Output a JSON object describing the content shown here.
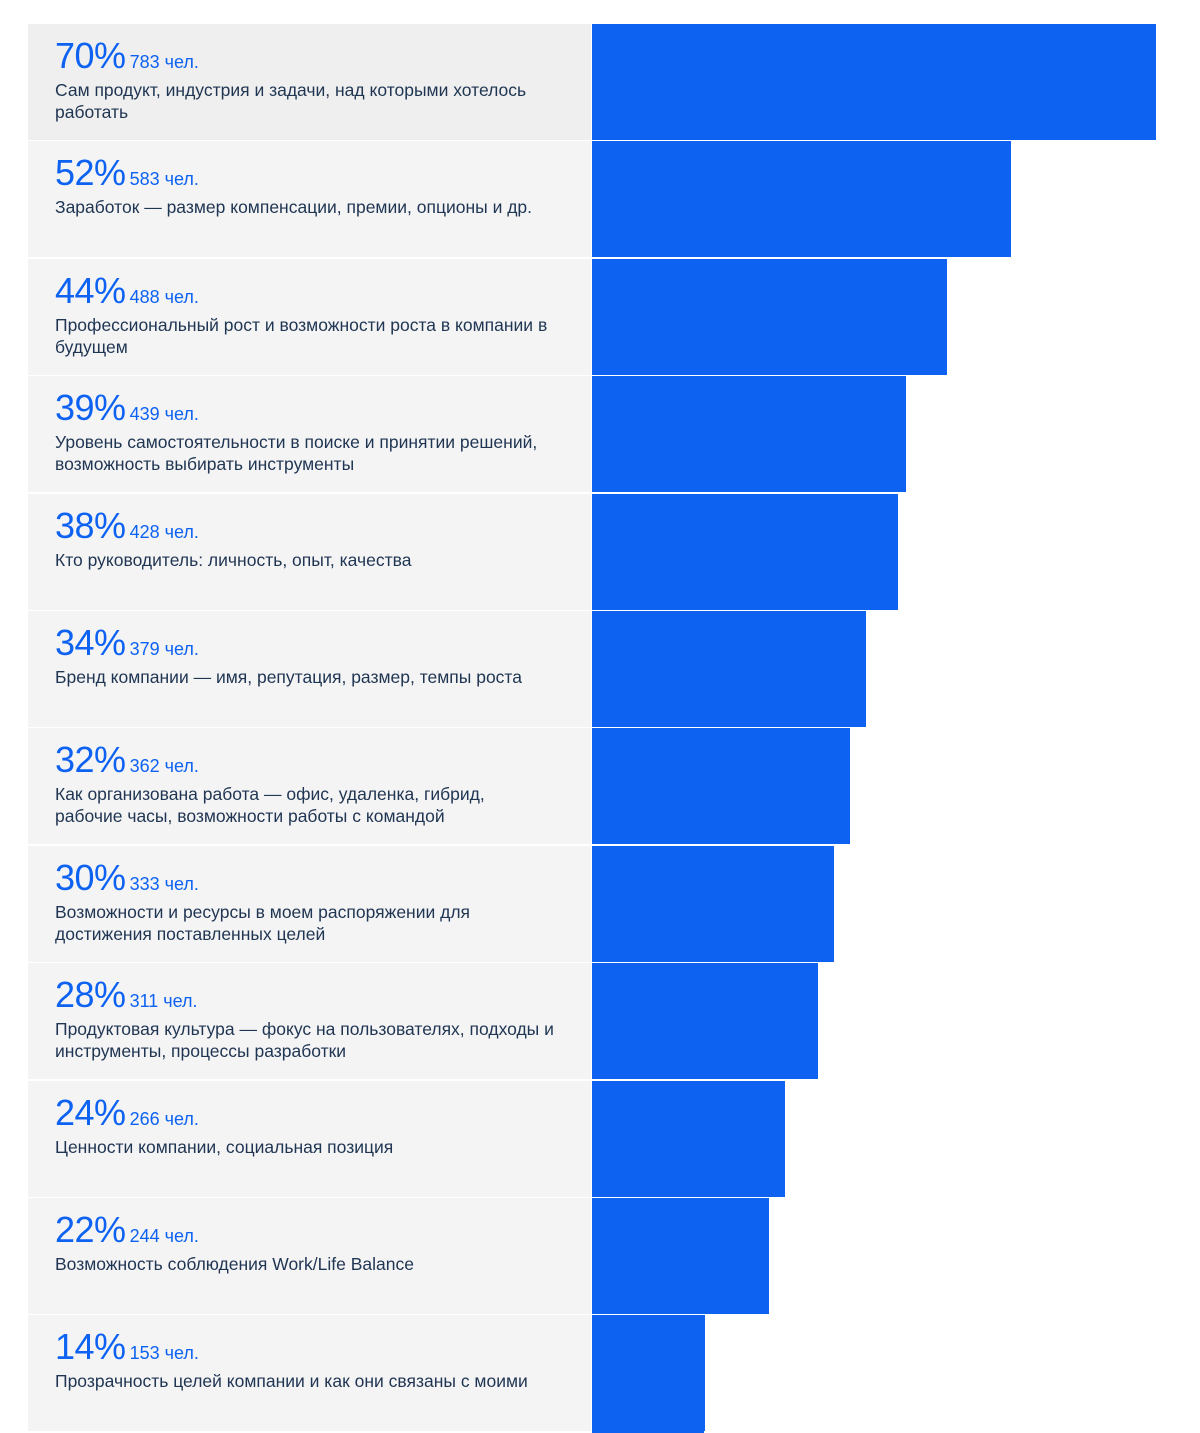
{
  "colors": {
    "accent": "#0d62f2",
    "text": "#1f3552"
  },
  "chart_data": {
    "type": "bar",
    "orientation": "horizontal",
    "unit_count": "чел.",
    "max_value": 70,
    "items": [
      {
        "percent": 70,
        "percent_label": "70%",
        "count": 783,
        "count_label": "783 чел.",
        "label": "Сам продукт, индустрия и задачи, над которыми хотелось работать"
      },
      {
        "percent": 52,
        "percent_label": "52%",
        "count": 583,
        "count_label": "583 чел.",
        "label": "Заработок — размер компенсации, премии, опционы и др."
      },
      {
        "percent": 44,
        "percent_label": "44%",
        "count": 488,
        "count_label": "488 чел.",
        "label": "Профессиональный рост и возможности роста в компании в будущем"
      },
      {
        "percent": 39,
        "percent_label": "39%",
        "count": 439,
        "count_label": "439 чел.",
        "label": "Уровень самостоятельности в поиске и принятии решений, возможность выбирать инструменты"
      },
      {
        "percent": 38,
        "percent_label": "38%",
        "count": 428,
        "count_label": "428 чел.",
        "label": "Кто руководитель: личность, опыт, качества"
      },
      {
        "percent": 34,
        "percent_label": "34%",
        "count": 379,
        "count_label": "379 чел.",
        "label": "Бренд компании — имя, репутация, размер, темпы роста"
      },
      {
        "percent": 32,
        "percent_label": "32%",
        "count": 362,
        "count_label": "362 чел.",
        "label": "Как организована работа — офис, удаленка, гибрид, рабочие часы, возможности работы с командой"
      },
      {
        "percent": 30,
        "percent_label": "30%",
        "count": 333,
        "count_label": "333 чел.",
        "label": "Возможности и ресурсы в моем распоряжении для достижения поставленных целей"
      },
      {
        "percent": 28,
        "percent_label": "28%",
        "count": 311,
        "count_label": "311 чел.",
        "label": "Продуктовая культура — фокус на пользователях, подходы и инструменты, процессы разработки"
      },
      {
        "percent": 24,
        "percent_label": "24%",
        "count": 266,
        "count_label": "266 чел.",
        "label": "Ценности компании, социальная позиция"
      },
      {
        "percent": 22,
        "percent_label": "22%",
        "count": 244,
        "count_label": "244 чел.",
        "label": "Возможность соблюдения Work/Life Balance"
      },
      {
        "percent": 14,
        "percent_label": "14%",
        "count": 153,
        "count_label": "153 чел.",
        "label": "Прозрачность целей компании и как они связаны с моими"
      }
    ]
  }
}
